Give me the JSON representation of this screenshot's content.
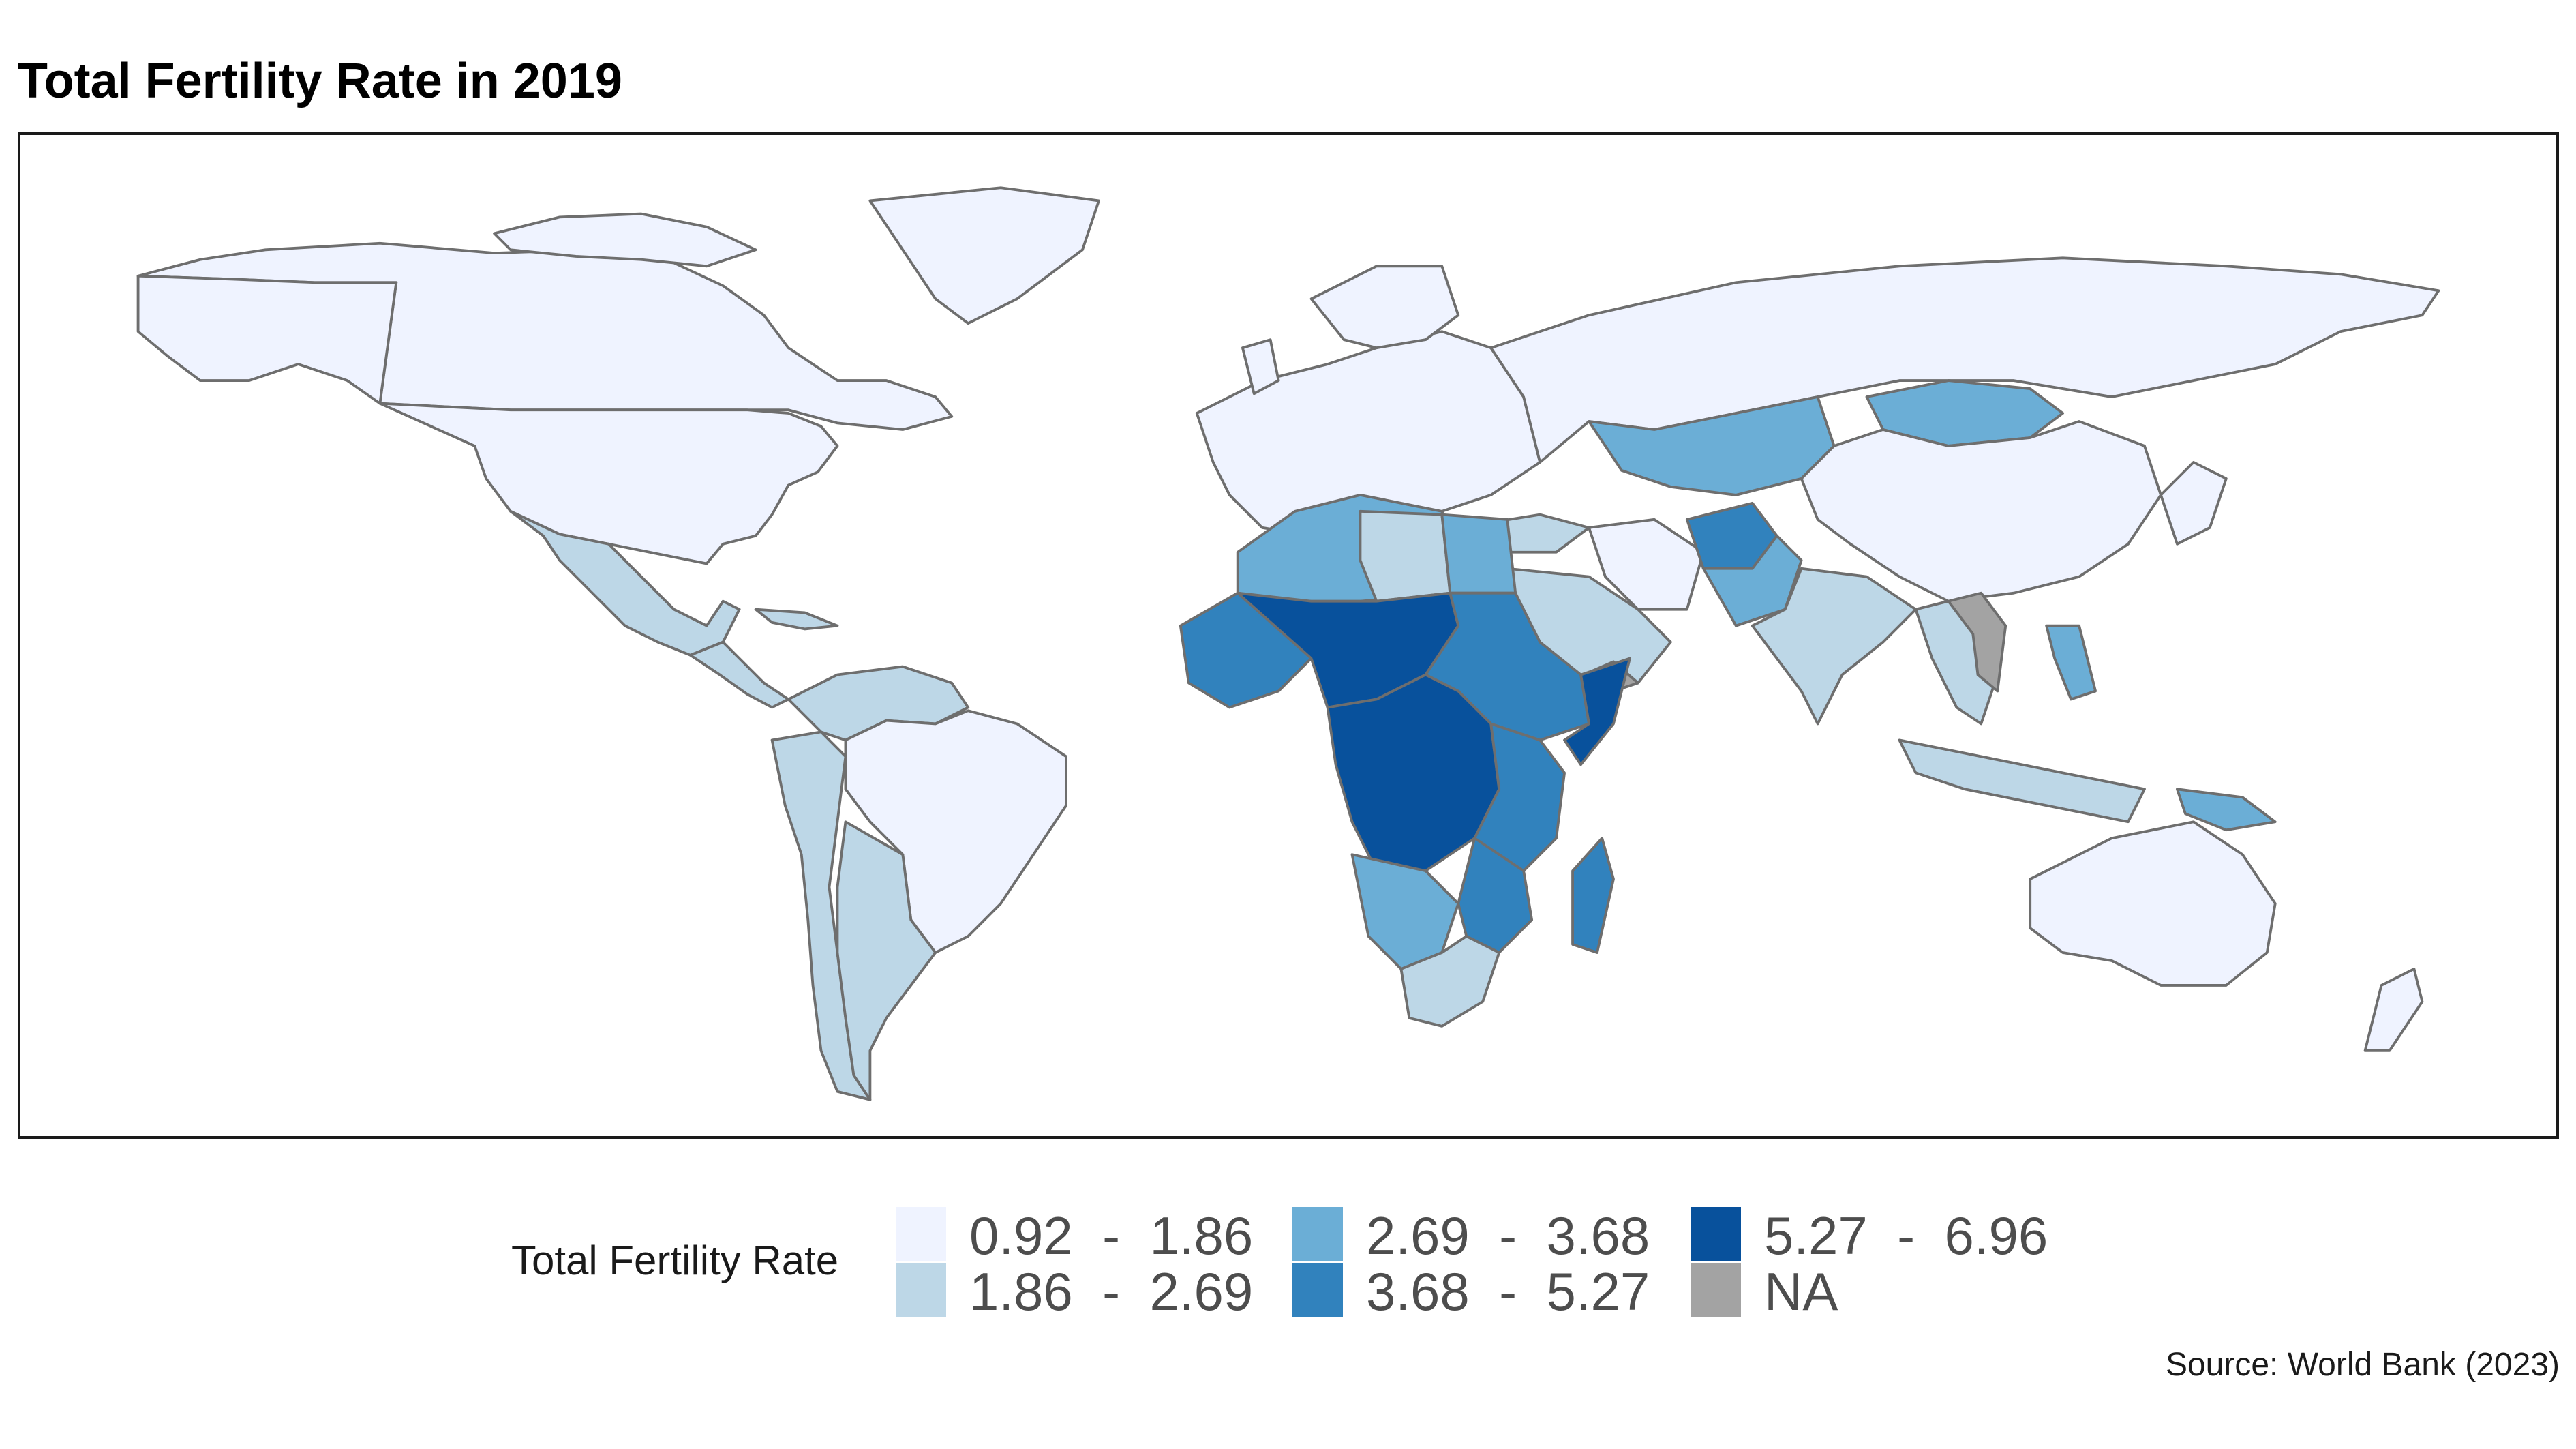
{
  "title": "Total Fertility Rate in 2019",
  "source": "Source: World Bank (2023)",
  "legend": {
    "title": "Total Fertility Rate",
    "items": [
      {
        "label": "0.92  -  1.86",
        "color": "#eff3ff"
      },
      {
        "label": "1.86  -  2.69",
        "color": "#bdd7e7"
      },
      {
        "label": "2.69  -  3.68",
        "color": "#6baed6"
      },
      {
        "label": "3.68  -  5.27",
        "color": "#3182bd"
      },
      {
        "label": "5.27  -  6.96",
        "color": "#08519c"
      },
      {
        "label": "NA",
        "color": "#a3a3a3"
      }
    ]
  },
  "colors": {
    "c1": "#eff3ff",
    "c2": "#bdd7e7",
    "c3": "#6baed6",
    "c4": "#3182bd",
    "c5": "#08519c",
    "na": "#a3a3a3"
  }
}
